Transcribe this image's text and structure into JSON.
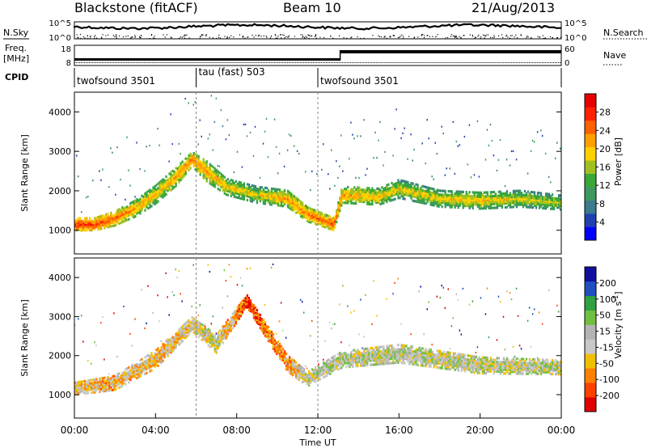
{
  "header": {
    "station": "Blackstone (fitACF)",
    "beam": "Beam 10",
    "date": "21/Aug/2013"
  },
  "summary_panels": {
    "nsky_label": "N.Sky",
    "nsearch_label": "N.Search",
    "nsky_ticks": [
      "10^5",
      "10^0"
    ],
    "nsearch_ticks": [
      "10^5",
      "10^0"
    ],
    "freq_label_line1": "Freq.",
    "freq_label_line2": "[MHz]",
    "freq_ticks": [
      "18",
      "8"
    ],
    "nave_label": "Nave",
    "nave_ticks": [
      "60",
      "0"
    ],
    "cpid_label": "CPID"
  },
  "cpid_segments": [
    {
      "label": "twofsound 3501",
      "start_hour": 0,
      "end_hour": 6
    },
    {
      "label": "tau (fast) 503",
      "start_hour": 6,
      "end_hour": 12
    },
    {
      "label": "twofsound 3501",
      "start_hour": 12,
      "end_hour": 24
    }
  ],
  "colors": {
    "power_scale": [
      "#0000ff",
      "#2040b0",
      "#3c7a8c",
      "#3c9960",
      "#38a838",
      "#a0c020",
      "#ffd000",
      "#ffa000",
      "#ff6000",
      "#ff2000",
      "#e80000"
    ],
    "velocity_scale": [
      "#1010a0",
      "#2050c0",
      "#30a040",
      "#70c040",
      "#b4b4b4",
      "#c8c8c8",
      "#f0c000",
      "#ff8000",
      "#ff4000",
      "#e00000"
    ]
  },
  "chart_data": [
    {
      "type": "heatmap",
      "title": "Power",
      "xlabel": "Time UT",
      "ylabel": "Slant Range [km]",
      "xlim": [
        0,
        24
      ],
      "ylim": [
        400,
        4500
      ],
      "x_ticks": [
        "00:00",
        "04:00",
        "08:00",
        "12:00",
        "16:00",
        "20:00",
        "00:00"
      ],
      "y_ticks": [
        "1000",
        "2000",
        "3000",
        "4000"
      ],
      "colorbar": {
        "label": "Power [dB]",
        "range": [
          0,
          32
        ],
        "ticks": [
          "28",
          "24",
          "20",
          "16",
          "12",
          "8",
          "4"
        ]
      },
      "echo_bands": [
        {
          "hour": 0.0,
          "center_km": 1150,
          "width_km": 300,
          "value": 28
        },
        {
          "hour": 1.0,
          "center_km": 1150,
          "width_km": 300,
          "value": 27
        },
        {
          "hour": 2.0,
          "center_km": 1300,
          "width_km": 350,
          "value": 25
        },
        {
          "hour": 3.0,
          "center_km": 1550,
          "width_km": 400,
          "value": 22
        },
        {
          "hour": 4.0,
          "center_km": 1900,
          "width_km": 450,
          "value": 20
        },
        {
          "hour": 5.0,
          "center_km": 2350,
          "width_km": 450,
          "value": 22
        },
        {
          "hour": 5.8,
          "center_km": 2800,
          "width_km": 350,
          "value": 24
        },
        {
          "hour": 6.5,
          "center_km": 2500,
          "width_km": 500,
          "value": 22
        },
        {
          "hour": 7.5,
          "center_km": 2100,
          "width_km": 400,
          "value": 20
        },
        {
          "hour": 9.0,
          "center_km": 1900,
          "width_km": 400,
          "value": 18
        },
        {
          "hour": 10.5,
          "center_km": 1800,
          "width_km": 400,
          "value": 22
        },
        {
          "hour": 11.5,
          "center_km": 1400,
          "width_km": 350,
          "value": 24
        },
        {
          "hour": 12.8,
          "center_km": 1150,
          "width_km": 300,
          "value": 26
        },
        {
          "hour": 13.2,
          "center_km": 1900,
          "width_km": 400,
          "value": 22
        },
        {
          "hour": 15.0,
          "center_km": 1850,
          "width_km": 400,
          "value": 20
        },
        {
          "hour": 16.0,
          "center_km": 2050,
          "width_km": 450,
          "value": 18
        },
        {
          "hour": 18.0,
          "center_km": 1800,
          "width_km": 400,
          "value": 19
        },
        {
          "hour": 20.0,
          "center_km": 1750,
          "width_km": 400,
          "value": 20
        },
        {
          "hour": 22.0,
          "center_km": 1800,
          "width_km": 400,
          "value": 18
        },
        {
          "hour": 24.0,
          "center_km": 1700,
          "width_km": 350,
          "value": 17
        }
      ]
    },
    {
      "type": "heatmap",
      "title": "Velocity",
      "xlabel": "Time UT",
      "ylabel": "Slant Range [km]",
      "xlim": [
        0,
        24
      ],
      "ylim": [
        400,
        4500
      ],
      "x_ticks": [
        "00:00",
        "04:00",
        "08:00",
        "12:00",
        "16:00",
        "20:00",
        "00:00"
      ],
      "y_ticks": [
        "1000",
        "2000",
        "3000",
        "4000"
      ],
      "colorbar": {
        "label": "Velocity [m s^-1]",
        "label_main": "Velocity [m s",
        "label_sup": "-1",
        "label_close": "]",
        "range": [
          -250,
          250
        ],
        "ticks": [
          "200",
          "100",
          "50",
          "15",
          "-15",
          "-50",
          "-100",
          "-200"
        ]
      },
      "echo_bands": [
        {
          "hour": 0.0,
          "center_km": 1150,
          "width_km": 300,
          "value": -60
        },
        {
          "hour": 2.0,
          "center_km": 1300,
          "width_km": 350,
          "value": -70
        },
        {
          "hour": 4.0,
          "center_km": 1900,
          "width_km": 450,
          "value": -60
        },
        {
          "hour": 5.8,
          "center_km": 2800,
          "width_km": 350,
          "value": -40
        },
        {
          "hour": 7.0,
          "center_km": 2300,
          "width_km": 450,
          "value": 0
        },
        {
          "hour": 8.5,
          "center_km": 3400,
          "width_km": 300,
          "value": -180
        },
        {
          "hour": 10.5,
          "center_km": 1800,
          "width_km": 400,
          "value": -90
        },
        {
          "hour": 11.5,
          "center_km": 1400,
          "width_km": 350,
          "value": 5
        },
        {
          "hour": 13.2,
          "center_km": 1900,
          "width_km": 400,
          "value": 0
        },
        {
          "hour": 16.0,
          "center_km": 2050,
          "width_km": 450,
          "value": 0
        },
        {
          "hour": 20.0,
          "center_km": 1750,
          "width_km": 400,
          "value": 0
        },
        {
          "hour": 24.0,
          "center_km": 1700,
          "width_km": 350,
          "value": 5
        }
      ]
    }
  ]
}
